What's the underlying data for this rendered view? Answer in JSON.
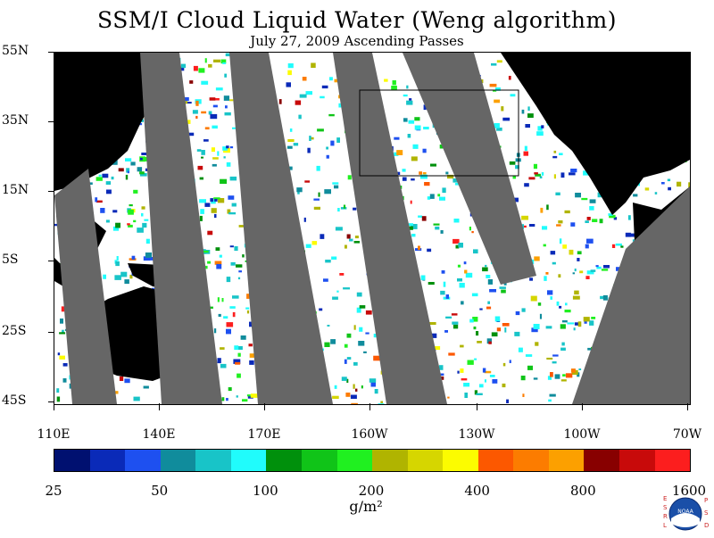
{
  "title": "SSM/I Cloud Liquid Water (Weng algorithm)",
  "subtitle": "July 27, 2009  Ascending Passes",
  "lat_labels": [
    "55N",
    "35N",
    "15N",
    "5S",
    "25S",
    "45S"
  ],
  "lon_labels": [
    "110E",
    "140E",
    "170E",
    "160W",
    "130W",
    "100W",
    "70W"
  ],
  "colorbar": {
    "tick_labels": [
      "25",
      "50",
      "100",
      "200",
      "400",
      "800",
      "1600"
    ],
    "units": "g/m²",
    "colors": [
      "#001070",
      "#0a2ab8",
      "#1e50f0",
      "#108c9c",
      "#18c4c8",
      "#20fcfc",
      "#00900c",
      "#10c418",
      "#20f020",
      "#b0b400",
      "#d6d600",
      "#fcfc00",
      "#fc5800",
      "#fc7c00",
      "#fca000",
      "#880000",
      "#c80a0a",
      "#fc1e1e"
    ]
  },
  "logo": {
    "left_text": "ESRL",
    "right_text": "PSD",
    "center_text": "NOAA"
  },
  "map_colors": {
    "land": "#000000",
    "gap": "#666666",
    "ocean": "#ffffff"
  }
}
